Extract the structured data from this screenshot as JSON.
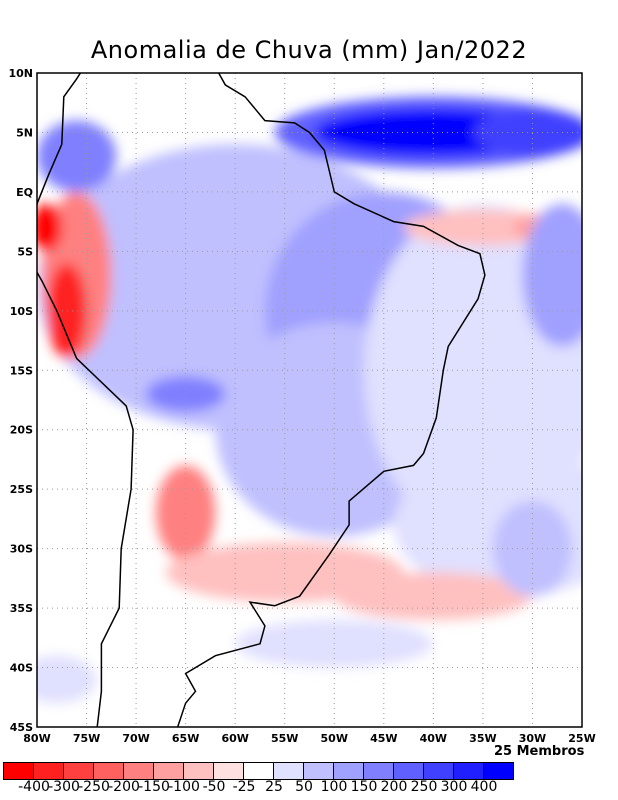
{
  "title": "Anomalia de Chuva (mm) Jan/2022",
  "members": "25 Membros",
  "lat_ticks": [
    "10N",
    "5N",
    "EQ",
    "5S",
    "10S",
    "15S",
    "20S",
    "25S",
    "30S",
    "35S",
    "40S",
    "45S"
  ],
  "lon_ticks": [
    "80W",
    "75W",
    "70W",
    "65W",
    "60W",
    "55W",
    "50W",
    "45W",
    "40W",
    "35W",
    "30W",
    "25W"
  ],
  "colorbar": {
    "colors": [
      "#ff0000",
      "#ff2020",
      "#ff4040",
      "#ff6060",
      "#ff8080",
      "#ffa0a0",
      "#ffc0c0",
      "#ffe0e0",
      "#ffffff",
      "#e0e0ff",
      "#c0c0ff",
      "#a0a0ff",
      "#8080ff",
      "#6060ff",
      "#4040ff",
      "#2020ff",
      "#0000ff"
    ],
    "labels": [
      "-400",
      "-300",
      "-250",
      "-200",
      "-150",
      "-100",
      "-50",
      "-25",
      "25",
      "50",
      "100",
      "150",
      "200",
      "250",
      "300",
      "400"
    ]
  }
}
